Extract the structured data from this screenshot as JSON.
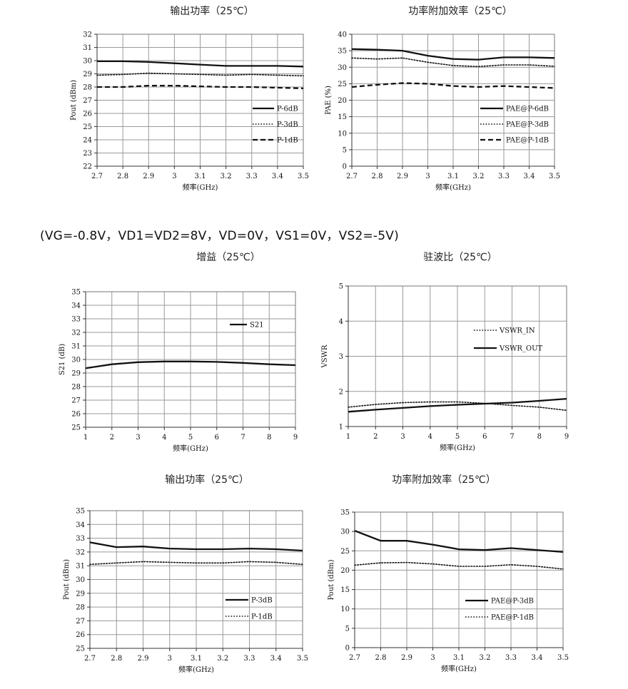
{
  "condition_note": "(VG=-0.8V，VD1=VD2=8V，VD=0V，VS1=0V，VS2=-5V)",
  "colors": {
    "line": "#111111",
    "grid": "#9a9a9a"
  },
  "chart_data": [
    {
      "type": "line",
      "title": "输出功率（25℃）",
      "xlabel": "频率(GHz)",
      "ylabel": "Pout (dBm)",
      "x": [
        2.7,
        2.8,
        2.9,
        3.0,
        3.1,
        3.2,
        3.3,
        3.4,
        3.5
      ],
      "xlim": [
        2.7,
        3.5
      ],
      "ylim": [
        22,
        32
      ],
      "yticks": [
        22,
        23,
        24,
        25,
        26,
        27,
        28,
        29,
        30,
        31,
        32
      ],
      "grid": true,
      "legend_position": "right-middle",
      "series": [
        {
          "name": "P-6dB",
          "style": "solid",
          "values": [
            29.95,
            29.95,
            29.9,
            29.8,
            29.7,
            29.6,
            29.6,
            29.6,
            29.55
          ]
        },
        {
          "name": "P-3dB",
          "style": "dotted",
          "values": [
            28.9,
            28.95,
            29.05,
            29.0,
            28.95,
            28.9,
            28.95,
            28.9,
            28.85
          ]
        },
        {
          "name": "P-1dB",
          "style": "dashed",
          "values": [
            28.0,
            28.0,
            28.1,
            28.1,
            28.05,
            28.0,
            28.0,
            27.95,
            27.9
          ]
        }
      ]
    },
    {
      "type": "line",
      "title": "功率附加效率（25℃）",
      "xlabel": "频率(GHz)",
      "ylabel": "PAE (%)",
      "x": [
        2.7,
        2.8,
        2.9,
        3.0,
        3.1,
        3.2,
        3.3,
        3.4,
        3.5
      ],
      "xlim": [
        2.7,
        3.5
      ],
      "ylim": [
        0,
        40
      ],
      "yticks": [
        0,
        5,
        10,
        15,
        20,
        25,
        30,
        35,
        40
      ],
      "grid": true,
      "legend_position": "bottom-right",
      "series": [
        {
          "name": "PAE@P-6dB",
          "style": "solid",
          "values": [
            35.5,
            35.3,
            35.0,
            33.5,
            32.5,
            32.3,
            33.0,
            33.0,
            32.8
          ]
        },
        {
          "name": "PAE@P-3dB",
          "style": "dotted",
          "values": [
            32.8,
            32.5,
            32.8,
            31.5,
            30.5,
            30.2,
            30.7,
            30.7,
            30.3
          ]
        },
        {
          "name": "PAE@P-1dB",
          "style": "dashed",
          "values": [
            24.0,
            24.7,
            25.2,
            25.0,
            24.3,
            24.0,
            24.3,
            24.0,
            23.7
          ]
        }
      ]
    },
    {
      "type": "line",
      "title": "增益（25℃）",
      "xlabel": "频率(GHz)",
      "ylabel": "S21 (dB)",
      "x": [
        1,
        2,
        3,
        4,
        5,
        6,
        7,
        8,
        9
      ],
      "xlim": [
        1,
        9
      ],
      "ylim": [
        25,
        35
      ],
      "yticks": [
        25,
        26,
        27,
        28,
        29,
        30,
        31,
        32,
        33,
        34,
        35
      ],
      "grid": true,
      "legend_position": "top-right",
      "series": [
        {
          "name": "S21",
          "style": "solid",
          "values": [
            29.35,
            29.65,
            29.8,
            29.85,
            29.85,
            29.82,
            29.75,
            29.65,
            29.58
          ]
        }
      ]
    },
    {
      "type": "line",
      "title": "驻波比（25℃）",
      "xlabel": "频率(GHz)",
      "ylabel": "VSWR",
      "x": [
        1,
        2,
        3,
        4,
        5,
        6,
        7,
        8,
        9
      ],
      "xlim": [
        1,
        9
      ],
      "ylim": [
        1,
        5
      ],
      "yticks": [
        1,
        2,
        3,
        4,
        5
      ],
      "grid": true,
      "legend_position": "top-right",
      "series": [
        {
          "name": "VSWR_IN",
          "style": "dotted",
          "values": [
            1.55,
            1.63,
            1.68,
            1.7,
            1.7,
            1.66,
            1.6,
            1.55,
            1.46
          ]
        },
        {
          "name": "VSWR_OUT",
          "style": "solid",
          "values": [
            1.42,
            1.48,
            1.53,
            1.58,
            1.62,
            1.65,
            1.68,
            1.73,
            1.79
          ]
        }
      ]
    },
    {
      "type": "line",
      "title": "输出功率（25℃）",
      "xlabel": "频率(GHz)",
      "ylabel": "Pout (dBm)",
      "x": [
        2.7,
        2.8,
        2.9,
        3.0,
        3.1,
        3.2,
        3.3,
        3.4,
        3.5
      ],
      "xlim": [
        2.7,
        3.5
      ],
      "ylim": [
        25,
        35
      ],
      "yticks": [
        25,
        26,
        27,
        28,
        29,
        30,
        31,
        32,
        33,
        34,
        35
      ],
      "grid": true,
      "legend_position": "bottom-right",
      "series": [
        {
          "name": "P-3dB",
          "style": "solid",
          "values": [
            32.7,
            32.35,
            32.4,
            32.25,
            32.2,
            32.2,
            32.25,
            32.2,
            32.1
          ]
        },
        {
          "name": "P-1dB",
          "style": "dotted",
          "values": [
            31.1,
            31.2,
            31.3,
            31.25,
            31.2,
            31.2,
            31.3,
            31.25,
            31.1
          ]
        }
      ]
    },
    {
      "type": "line",
      "title": "功率附加效率（25℃）",
      "xlabel": "频率(GHz)",
      "ylabel": "Pout (dBm)",
      "x": [
        2.7,
        2.8,
        2.9,
        3.0,
        3.1,
        3.2,
        3.3,
        3.4,
        3.5
      ],
      "xlim": [
        2.7,
        3.5
      ],
      "ylim": [
        0,
        35
      ],
      "yticks": [
        0,
        5,
        10,
        15,
        20,
        25,
        30,
        35
      ],
      "grid": true,
      "legend_position": "bottom-right",
      "series": [
        {
          "name": "PAE@P-3dB",
          "style": "solid",
          "values": [
            30.2,
            27.6,
            27.6,
            26.6,
            25.4,
            25.2,
            25.7,
            25.2,
            24.7
          ]
        },
        {
          "name": "PAE@P-1dB",
          "style": "dotted",
          "values": [
            21.3,
            21.9,
            22.0,
            21.6,
            21.0,
            21.0,
            21.4,
            21.0,
            20.3
          ]
        }
      ]
    }
  ]
}
